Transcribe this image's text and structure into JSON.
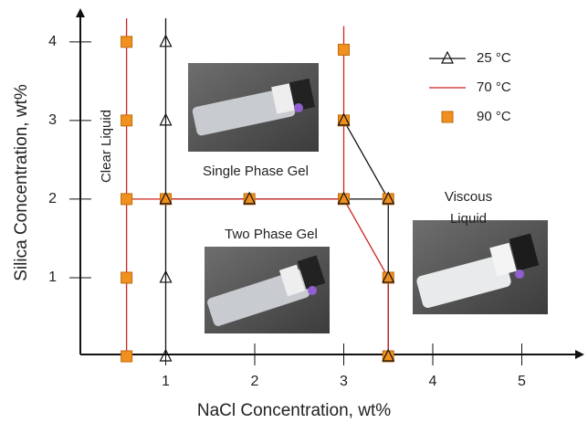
{
  "chart_data": {
    "type": "scatter",
    "x_label": "NaCl Concentration, wt%",
    "y_label": "Silica Concentration, wt%",
    "xlim": [
      0,
      5.6
    ],
    "ylim": [
      0,
      4.3
    ],
    "xticks": [
      1,
      2,
      3,
      4,
      5
    ],
    "yticks": [
      1,
      2,
      3,
      4
    ],
    "annotations": [
      "Clear Liquid",
      "Single Phase Gel",
      "Two Phase Gel",
      "Viscous",
      "Liquid"
    ],
    "series": [
      {
        "name": "25 °C",
        "color": "#111111",
        "marker": "triangle",
        "x": [
          1,
          1,
          1,
          1,
          1,
          1.94,
          3,
          3.5,
          3.5,
          3.5,
          3
        ],
        "y": [
          0,
          1,
          2,
          3,
          4,
          2,
          2,
          2,
          1,
          0,
          3
        ],
        "lines": [
          {
            "x": [
              1,
              1
            ],
            "y": [
              0,
              4.3
            ]
          },
          {
            "x": [
              1,
              3.5,
              3.5
            ],
            "y": [
              2,
              2,
              0
            ]
          },
          {
            "x": [
              3,
              3.5
            ],
            "y": [
              3,
              2
            ]
          }
        ]
      },
      {
        "name": "70 °C",
        "color": "#cc2222",
        "marker": "none",
        "x": [],
        "y": [],
        "lines": [
          {
            "x": [
              0.56,
              0.56
            ],
            "y": [
              0,
              4.3
            ]
          },
          {
            "x": [
              0.56,
              3
            ],
            "y": [
              2,
              2
            ]
          },
          {
            "x": [
              3,
              3
            ],
            "y": [
              2,
              4.2
            ]
          },
          {
            "x": [
              3,
              3.5,
              3.5
            ],
            "y": [
              2,
              1,
              0
            ]
          }
        ]
      },
      {
        "name": "90 °C",
        "color": "#f0901e",
        "marker": "square",
        "x": [
          0.56,
          0.56,
          0.56,
          0.56,
          0.56,
          1,
          1.94,
          3,
          3,
          3,
          3.5,
          3.5,
          3.5
        ],
        "y": [
          0,
          1,
          2,
          3,
          4,
          2,
          2,
          2,
          3,
          3.9,
          2,
          1,
          0
        ],
        "lines": []
      }
    ]
  }
}
